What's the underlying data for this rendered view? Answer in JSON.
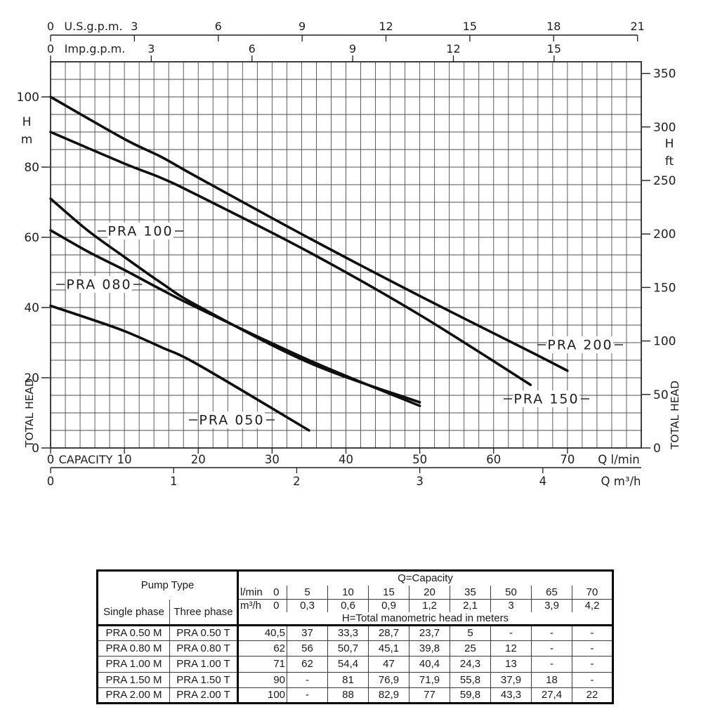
{
  "colors": {
    "background": "#ffffff",
    "curve": "#0f0f0f",
    "grid": "#4d4d4d",
    "axis": "#1f1f1f",
    "text": "#1f1f1f",
    "table_thin_border": "#3d3d3d",
    "table_thick_border": "#000000"
  },
  "chart_data": {
    "type": "line",
    "title": "",
    "xlabel": "CAPACITY",
    "ylabel": "TOTAL HEAD",
    "xlim_lmin": [
      0,
      80
    ],
    "ylim_m": [
      0,
      110
    ],
    "grid": {
      "on": true,
      "x_step_lmin": 2,
      "y_step_m": 5
    },
    "axes": {
      "top_outer": {
        "label": "U.S.g.p.m.",
        "ticks": [
          0,
          3,
          6,
          9,
          12,
          15,
          18,
          21
        ],
        "lmin_per_unit": 3.78541
      },
      "top_inner": {
        "label": "Imp.g.p.m.",
        "ticks": [
          0,
          3,
          6,
          9,
          12,
          15
        ],
        "lmin_per_unit": 4.54609
      },
      "left": {
        "unit_top": "H",
        "unit_bottom": "m",
        "axis_title": "TOTAL HEAD",
        "ticks": [
          100,
          80,
          60,
          40,
          20,
          0
        ]
      },
      "right": {
        "unit_top": "H",
        "unit_bottom": "ft",
        "axis_title": "TOTAL HEAD",
        "ticks": [
          350,
          300,
          250,
          200,
          150,
          100,
          50,
          0
        ],
        "m_per_unit": 0.3048
      },
      "bottom_main": {
        "name": "CAPACITY",
        "unit_label": "Q l/min",
        "ticks": [
          0,
          10,
          20,
          30,
          40,
          50,
          60,
          70
        ]
      },
      "bottom_outer": {
        "unit_label": "Q m³/h",
        "ticks": [
          0,
          1,
          2,
          3,
          4
        ],
        "lmin_per_unit": 16.6667
      }
    },
    "series": [
      {
        "name": "PRA 050",
        "points_q_lmin_h_m": [
          [
            0,
            40.5
          ],
          [
            5,
            37
          ],
          [
            10,
            33.3
          ],
          [
            15,
            28.7
          ],
          [
            20,
            23.7
          ],
          [
            35,
            5
          ]
        ]
      },
      {
        "name": "PRA 080",
        "points_q_lmin_h_m": [
          [
            0,
            62
          ],
          [
            5,
            56
          ],
          [
            10,
            50.7
          ],
          [
            15,
            45.1
          ],
          [
            20,
            39.8
          ],
          [
            35,
            25
          ],
          [
            50,
            12
          ]
        ]
      },
      {
        "name": "PRA 100",
        "points_q_lmin_h_m": [
          [
            0,
            71
          ],
          [
            5,
            62
          ],
          [
            10,
            54.4
          ],
          [
            15,
            47
          ],
          [
            20,
            40.4
          ],
          [
            35,
            24.3
          ],
          [
            50,
            13
          ]
        ]
      },
      {
        "name": "PRA 150",
        "points_q_lmin_h_m": [
          [
            0,
            90
          ],
          [
            10,
            81
          ],
          [
            15,
            76.9
          ],
          [
            20,
            71.9
          ],
          [
            35,
            55.8
          ],
          [
            50,
            37.9
          ],
          [
            65,
            18
          ]
        ]
      },
      {
        "name": "PRA 200",
        "points_q_lmin_h_m": [
          [
            0,
            100
          ],
          [
            10,
            88
          ],
          [
            15,
            82.9
          ],
          [
            20,
            77
          ],
          [
            35,
            59.8
          ],
          [
            50,
            43.3
          ],
          [
            65,
            27.4
          ],
          [
            70,
            22
          ]
        ]
      }
    ]
  },
  "table": {
    "header": {
      "pump_type": "Pump Type",
      "single_phase": "Single phase",
      "three_phase": "Three phase",
      "q_capacity": "Q=Capacity",
      "lmin_label": "l/min",
      "m3h_label": "m³/h",
      "lmin_values": [
        "0",
        "5",
        "10",
        "15",
        "20",
        "35",
        "50",
        "65",
        "70"
      ],
      "m3h_values": [
        "0",
        "0,3",
        "0,6",
        "0,9",
        "1,2",
        "2,1",
        "3",
        "3,9",
        "4,2"
      ],
      "head_note": "H=Total manometric head in meters"
    },
    "rows": [
      {
        "single": "PRA 0.50 M",
        "three": "PRA 0.50 T",
        "values": [
          "40,5",
          "37",
          "33,3",
          "28,7",
          "23,7",
          "5",
          "-",
          "-",
          "-"
        ]
      },
      {
        "single": "PRA 0.80 M",
        "three": "PRA 0.80 T",
        "values": [
          "62",
          "56",
          "50,7",
          "45,1",
          "39,8",
          "25",
          "12",
          "-",
          "-"
        ]
      },
      {
        "single": "PRA 1.00 M",
        "three": "PRA 1.00 T",
        "values": [
          "71",
          "62",
          "54,4",
          "47",
          "40,4",
          "24,3",
          "13",
          "-",
          "-"
        ]
      },
      {
        "single": "PRA 1.50 M",
        "three": "PRA 1.50 T",
        "values": [
          "90",
          "-",
          "81",
          "76,9",
          "71,9",
          "55,8",
          "37,9",
          "18",
          "-"
        ]
      },
      {
        "single": "PRA 2.00 M",
        "three": "PRA 2.00 T",
        "values": [
          "100",
          "-",
          "88",
          "82,9",
          "77",
          "59,8",
          "43,3",
          "27,4",
          "22"
        ]
      }
    ]
  }
}
